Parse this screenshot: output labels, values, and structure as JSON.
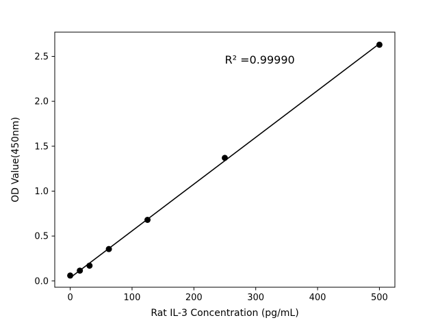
{
  "figure": {
    "background": "#ffffff"
  },
  "chart_data": {
    "type": "scatter",
    "title": "",
    "xlabel": "Rat IL-3 Concentration (pg/mL)",
    "ylabel": "OD Value(450nm)",
    "x": [
      0,
      15.6,
      31.25,
      62.5,
      125,
      250,
      500
    ],
    "y": [
      0.06,
      0.115,
      0.17,
      0.355,
      0.68,
      1.37,
      2.63
    ],
    "fit": "linear-regression",
    "annotation": {
      "text": "R² =0.99990",
      "x": 250,
      "y": 2.42
    },
    "xlim": [
      -25,
      525
    ],
    "ylim": [
      -0.07,
      2.77
    ],
    "xticks": [
      0,
      100,
      200,
      300,
      400,
      500
    ],
    "xtick_labels": [
      "0",
      "100",
      "200",
      "300",
      "400",
      "500"
    ],
    "yticks": [
      0.0,
      0.5,
      1.0,
      1.5,
      2.0,
      2.5
    ],
    "ytick_labels": [
      "0.0",
      "0.5",
      "1.0",
      "1.5",
      "2.0",
      "2.5"
    ],
    "grid": false,
    "legend": "none",
    "marker_color": "#000000",
    "line_color": "#000000",
    "marker_size": 4.5,
    "line_width": 1.6
  }
}
